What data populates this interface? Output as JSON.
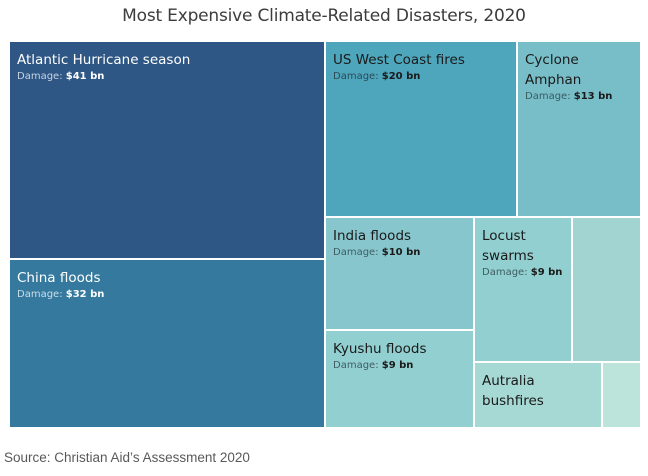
{
  "chart_data": {
    "type": "treemap",
    "title": "Most Expensive Climate-Related Disasters, 2020",
    "source": "Source: Christian Aid’s Assessment 2020",
    "value_label_prefix": "Damage: ",
    "unit_suffix": " bn",
    "items": [
      {
        "name": "Atlantic Hurricane season",
        "value": 41,
        "damage_text": "$41 bn",
        "color": "#2e5785",
        "text_color": "#ffffff",
        "sub_color": "#c7d3e0"
      },
      {
        "name": "China floods",
        "value": 32,
        "damage_text": "$32 bn",
        "color": "#357a9e",
        "text_color": "#ffffff",
        "sub_color": "#c9dde8"
      },
      {
        "name": "US West Coast fires",
        "value": 20,
        "damage_text": "$20 bn",
        "color": "#4ea6bd",
        "text_color": "#1a1a1a",
        "sub_color": "#2e4a55"
      },
      {
        "name": "Cyclone Amphan",
        "value": 13,
        "damage_text": "$13 bn",
        "color": "#78bec8",
        "text_color": "#1a1a1a",
        "sub_color": "#3b5a60"
      },
      {
        "name": "India floods",
        "value": 10,
        "damage_text": "$10 bn",
        "color": "#87c6cc",
        "text_color": "#1a1a1a",
        "sub_color": "#3f5e62"
      },
      {
        "name": "Kyushu floods",
        "value": 9,
        "damage_text": "$9 bn",
        "color": "#92cfd0",
        "text_color": "#1a1a1a",
        "sub_color": "#3f5e62"
      },
      {
        "name": "Locust swarms",
        "value": 9,
        "damage_text": "$9 bn",
        "color": "#92cfd0",
        "text_color": "#1a1a1a",
        "sub_color": "#3f5e62"
      },
      {
        "name": "",
        "value": 6,
        "damage_text": "",
        "color": "#a2d5d2",
        "text_color": "#1a1a1a",
        "sub_color": "#3f5e62"
      },
      {
        "name": "Autralia bushfires",
        "value": 5,
        "damage_text": "",
        "color": "#a6d8d4",
        "text_color": "#1a1a1a",
        "sub_color": "#3f5e62"
      },
      {
        "name": "",
        "value": 1.5,
        "damage_text": "",
        "color": "#bde4da",
        "text_color": "#1a1a1a",
        "sub_color": "#3f5e62"
      }
    ]
  }
}
